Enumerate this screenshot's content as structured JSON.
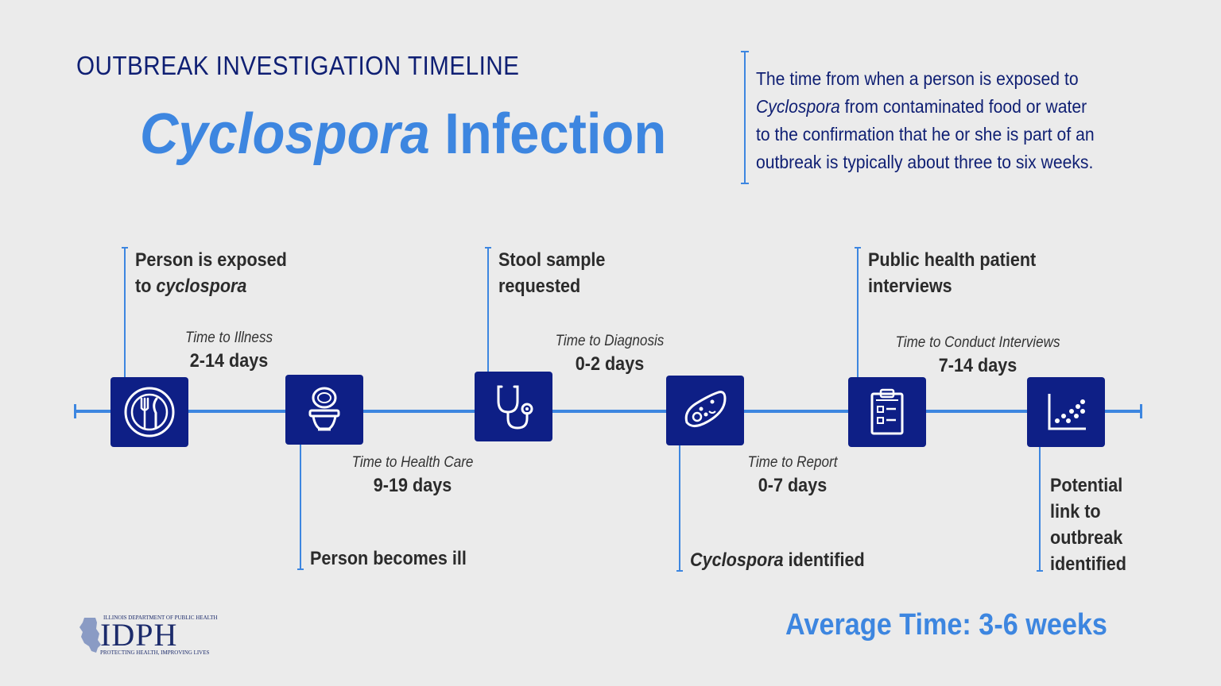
{
  "header": {
    "subtitle": "OUTBREAK INVESTIGATION TIMELINE",
    "title_italic": "Cyclospora",
    "title_rest": " Infection"
  },
  "intro": {
    "line1": "The time from when a person is exposed to",
    "line2_italic": "Cyclospora",
    "line2_rest": " from contaminated food or water",
    "line3": "to the confirmation that he or she is part of an",
    "line4": "outbreak is typically about three to six weeks."
  },
  "events": {
    "exposed_a": "Person is exposed",
    "exposed_b": "to ",
    "exposed_b_italic": "cyclospora",
    "ill": "Person becomes ill",
    "stool_a": "Stool sample",
    "stool_b": "requested",
    "identified_italic": "Cyclospora",
    "identified_rest": " identified",
    "interviews_a": "Public health patient",
    "interviews_b": "interviews",
    "link_a": "Potential",
    "link_b": "link to",
    "link_c": "outbreak",
    "link_d": "identified"
  },
  "durations": {
    "illness": {
      "label": "Time to Illness",
      "value": "2-14 days"
    },
    "health_care": {
      "label": "Time to Health Care",
      "value": "9-19 days"
    },
    "diagnosis": {
      "label": "Time to Diagnosis",
      "value": "0-2 days"
    },
    "report": {
      "label": "Time to Report",
      "value": "0-7 days"
    },
    "interviews": {
      "label": "Time to Conduct Interviews",
      "value": "7-14 days"
    }
  },
  "icons": [
    "fork-knife-plate-icon",
    "toilet-icon",
    "stethoscope-icon",
    "parasite-icon",
    "clipboard-icon",
    "scatter-plot-icon"
  ],
  "footer": {
    "average": "Average Time: 3-6 weeks",
    "logo_top": "ILLINOIS DEPARTMENT OF PUBLIC HEALTH",
    "logo_main": "IDPH",
    "logo_bottom": "PROTECTING HEALTH, IMPROVING LIVES"
  },
  "colors": {
    "navy": "#0e1f86",
    "accent": "#3d86e0",
    "background": "#ebebeb"
  }
}
